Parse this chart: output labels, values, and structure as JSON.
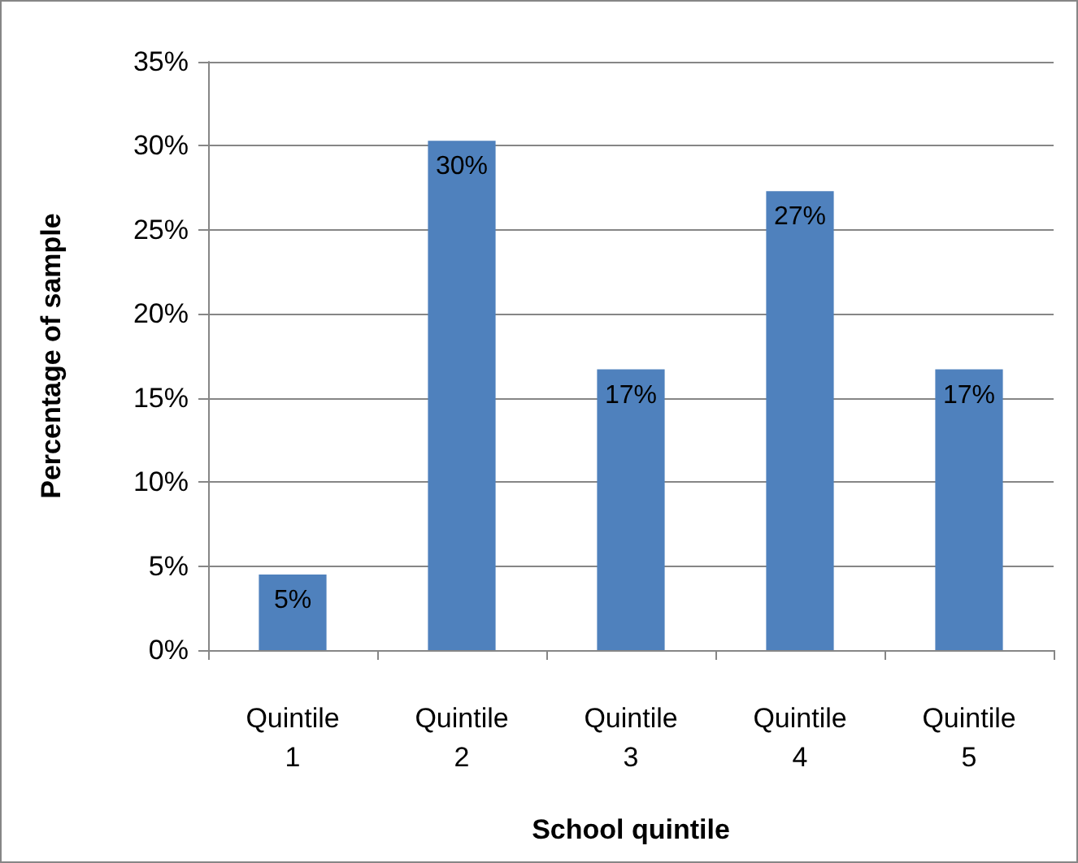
{
  "chart_data": {
    "type": "bar",
    "xlabel": "School quintile",
    "ylabel": "Percentage of sample",
    "categories": [
      "Quintile 1",
      "Quintile 2",
      "Quintile 3",
      "Quintile 4",
      "Quintile 5"
    ],
    "values": [
      4.5,
      30.3,
      16.7,
      27.3,
      16.7
    ],
    "value_labels": [
      "5%",
      "30%",
      "17%",
      "27%",
      "17%"
    ],
    "color": "#4f81bd",
    "ylim": [
      0,
      35
    ],
    "yticks": [
      {
        "value": 0,
        "label": "0%"
      },
      {
        "value": 5,
        "label": "5%"
      },
      {
        "value": 10,
        "label": "10%"
      },
      {
        "value": 15,
        "label": "15%"
      },
      {
        "value": 20,
        "label": "20%"
      },
      {
        "value": 25,
        "label": "25%"
      },
      {
        "value": 30,
        "label": "30%"
      },
      {
        "value": 35,
        "label": "35%"
      }
    ],
    "grid": true
  }
}
